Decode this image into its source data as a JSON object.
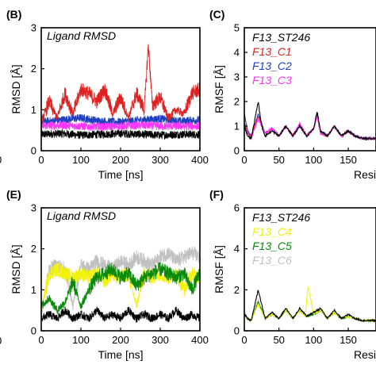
{
  "chart_data": [
    {
      "panel": "(B)",
      "type": "line",
      "title": "Ligand RMSD",
      "xlabel": "Time [ns]",
      "ylabel": "RMSD [Å]",
      "xlim": [
        0,
        400
      ],
      "ylim": [
        0,
        3
      ],
      "xticks": [
        "0",
        "100",
        "200",
        "300",
        "400"
      ],
      "yticks": [
        "0",
        "1",
        "2",
        "3"
      ],
      "series": [
        {
          "color": "#000000",
          "x": [
            0,
            50,
            100,
            150,
            200,
            250,
            300,
            350,
            400
          ],
          "y": [
            0.4,
            0.42,
            0.38,
            0.4,
            0.42,
            0.4,
            0.38,
            0.4,
            0.4
          ]
        },
        {
          "color": "#1f3fbf",
          "x": [
            0,
            50,
            100,
            150,
            200,
            250,
            300,
            350,
            400
          ],
          "y": [
            0.7,
            0.75,
            0.8,
            0.72,
            0.7,
            0.75,
            0.78,
            0.72,
            0.75
          ]
        },
        {
          "color": "#ff33ff",
          "x": [
            0,
            50,
            100,
            150,
            200,
            250,
            300,
            350,
            400
          ],
          "y": [
            0.6,
            0.62,
            0.6,
            0.58,
            0.6,
            0.62,
            0.6,
            0.6,
            0.6
          ]
        },
        {
          "color": "#dd2222",
          "x": [
            0,
            20,
            40,
            60,
            80,
            100,
            120,
            140,
            160,
            180,
            200,
            220,
            240,
            260,
            270,
            280,
            300,
            320,
            340,
            360,
            380,
            400
          ],
          "y": [
            0.7,
            1.2,
            0.8,
            1.4,
            0.9,
            1.5,
            1.4,
            1.2,
            1.5,
            0.9,
            1.3,
            0.8,
            1.4,
            1.0,
            2.6,
            1.1,
            1.3,
            0.8,
            1.0,
            0.9,
            1.4,
            1.5
          ]
        }
      ]
    },
    {
      "panel": "(C)",
      "type": "line",
      "ylabel": "RMSF [Å]",
      "xlabel_visible": "Resi",
      "ylim": [
        0,
        5
      ],
      "yticks": [
        "0",
        "1",
        "2",
        "3",
        "4",
        "5"
      ],
      "xticks": [
        "0",
        "50",
        "100",
        "150"
      ],
      "legend": [
        {
          "label": "F13_ST246",
          "color": "#000000"
        },
        {
          "label": "F13_C1",
          "color": "#dd2222"
        },
        {
          "label": "F13_C2",
          "color": "#1f3fbf"
        },
        {
          "label": "F13_C3",
          "color": "#ff33ff"
        }
      ],
      "series": [
        {
          "color": "#1f3fbf",
          "x": [
            0,
            5,
            10,
            20,
            30,
            40,
            50,
            60,
            70,
            80,
            90,
            100,
            105,
            110,
            120,
            130,
            140,
            150,
            160,
            170
          ],
          "y": [
            1.5,
            0.8,
            0.6,
            1.5,
            0.7,
            0.9,
            0.6,
            1.0,
            0.6,
            1.0,
            0.6,
            0.9,
            1.5,
            0.8,
            0.6,
            1.0,
            0.6,
            0.8,
            0.6,
            0.5
          ]
        },
        {
          "color": "#dd2222",
          "x": [
            0,
            5,
            10,
            20,
            30,
            40,
            50,
            60,
            70,
            80,
            90,
            100,
            105,
            110,
            120,
            130,
            140,
            150,
            160,
            170
          ],
          "y": [
            1.2,
            0.7,
            0.6,
            1.4,
            0.7,
            0.9,
            0.6,
            1.0,
            0.6,
            1.1,
            0.6,
            0.9,
            1.4,
            0.7,
            0.6,
            1.0,
            0.6,
            0.8,
            0.6,
            0.5
          ]
        },
        {
          "color": "#ff33ff",
          "x": [
            0,
            5,
            10,
            20,
            30,
            40,
            50,
            60,
            70,
            80,
            90,
            100,
            105,
            110,
            120,
            130,
            140,
            150,
            160,
            170
          ],
          "y": [
            1.0,
            0.7,
            0.5,
            1.3,
            0.7,
            0.9,
            0.6,
            1.0,
            0.6,
            1.1,
            0.6,
            0.9,
            1.4,
            0.7,
            0.6,
            1.0,
            0.6,
            0.8,
            0.6,
            0.5
          ]
        },
        {
          "color": "#000000",
          "x": [
            0,
            5,
            10,
            20,
            25,
            30,
            40,
            50,
            60,
            70,
            80,
            90,
            100,
            105,
            110,
            120,
            130,
            140,
            150,
            160,
            170
          ],
          "y": [
            1.0,
            0.6,
            0.5,
            2.0,
            1.0,
            0.6,
            0.8,
            0.6,
            1.0,
            0.6,
            1.0,
            0.6,
            0.9,
            1.6,
            0.8,
            0.6,
            1.0,
            0.6,
            0.8,
            0.6,
            0.5
          ]
        }
      ]
    },
    {
      "panel": "(E)",
      "type": "line",
      "title": "Ligand RMSD",
      "xlabel": "Time [ns]",
      "ylabel": "RMSD [Å]",
      "xlim": [
        0,
        400
      ],
      "ylim": [
        0,
        3
      ],
      "xticks": [
        "0",
        "100",
        "200",
        "300",
        "400"
      ],
      "yticks": [
        "0",
        "1",
        "2",
        "3"
      ],
      "series": [
        {
          "color": "#c0c0c0",
          "x": [
            0,
            20,
            40,
            60,
            80,
            100,
            120,
            140,
            160,
            180,
            200,
            220,
            240,
            260,
            280,
            300,
            320,
            340,
            360,
            380,
            400
          ],
          "y": [
            0.4,
            1.5,
            1.6,
            1.5,
            0.6,
            1.6,
            1.5,
            1.7,
            1.6,
            1.5,
            1.7,
            1.6,
            1.8,
            1.7,
            1.6,
            1.8,
            1.9,
            1.7,
            1.8,
            1.9,
            1.8
          ]
        },
        {
          "color": "#f2f20a",
          "x": [
            0,
            20,
            40,
            60,
            80,
            100,
            120,
            140,
            160,
            180,
            200,
            220,
            240,
            260,
            280,
            300,
            320,
            340,
            360,
            380,
            400
          ],
          "y": [
            0.5,
            1.4,
            1.5,
            1.4,
            1.3,
            1.4,
            1.3,
            1.4,
            1.2,
            1.4,
            1.3,
            1.4,
            0.6,
            1.4,
            1.3,
            1.4,
            1.3,
            1.4,
            1.0,
            1.4,
            1.3
          ]
        },
        {
          "color": "#0a8a0a",
          "x": [
            0,
            20,
            40,
            60,
            80,
            100,
            120,
            140,
            160,
            180,
            200,
            220,
            240,
            260,
            280,
            300,
            320,
            340,
            360,
            380,
            400
          ],
          "y": [
            0.6,
            0.8,
            0.5,
            0.7,
            1.2,
            0.6,
            1.0,
            1.3,
            1.4,
            1.5,
            1.3,
            1.4,
            1.1,
            1.3,
            1.4,
            1.5,
            1.4,
            1.3,
            1.4,
            1.0,
            1.4
          ]
        },
        {
          "color": "#000000",
          "x": [
            0,
            20,
            40,
            60,
            80,
            100,
            120,
            140,
            160,
            180,
            200,
            220,
            240,
            260,
            280,
            300,
            320,
            340,
            360,
            380,
            400
          ],
          "y": [
            0.3,
            0.4,
            0.3,
            0.5,
            0.3,
            0.4,
            0.3,
            0.5,
            0.3,
            0.4,
            0.3,
            0.5,
            0.3,
            0.4,
            0.3,
            0.4,
            0.3,
            0.5,
            0.3,
            0.4,
            0.3
          ]
        }
      ]
    },
    {
      "panel": "(F)",
      "type": "line",
      "ylabel": "RMSF [Å]",
      "xlabel_visible": "Resi",
      "ylim": [
        0,
        6
      ],
      "yticks": [
        "0",
        "2",
        "4",
        "6"
      ],
      "xticks": [
        "0",
        "50",
        "100",
        "150"
      ],
      "legend": [
        {
          "label": "F13_ST246",
          "color": "#000000"
        },
        {
          "label": "F13_C4",
          "color": "#f2f20a"
        },
        {
          "label": "F13_C5",
          "color": "#0a8a0a"
        },
        {
          "label": "F13_C6",
          "color": "#c0c0c0"
        }
      ],
      "series": [
        {
          "color": "#c0c0c0",
          "x": [
            0,
            5,
            10,
            20,
            30,
            40,
            50,
            60,
            70,
            80,
            90,
            100,
            110,
            120,
            130,
            140,
            150,
            160,
            170
          ],
          "y": [
            0.9,
            0.6,
            0.5,
            1.5,
            0.6,
            0.8,
            0.6,
            1.0,
            0.6,
            1.0,
            0.7,
            0.8,
            1.0,
            0.6,
            0.9,
            0.6,
            0.7,
            0.6,
            0.5
          ]
        },
        {
          "color": "#0a8a0a",
          "x": [
            0,
            5,
            10,
            20,
            30,
            40,
            50,
            60,
            70,
            80,
            90,
            100,
            110,
            120,
            130,
            140,
            150,
            160,
            170
          ],
          "y": [
            0.8,
            0.6,
            0.5,
            1.4,
            0.6,
            0.8,
            0.6,
            1.0,
            0.6,
            1.0,
            0.7,
            0.8,
            1.0,
            0.6,
            0.9,
            0.6,
            0.7,
            0.6,
            0.5
          ]
        },
        {
          "color": "#f2f20a",
          "x": [
            0,
            5,
            10,
            20,
            30,
            40,
            50,
            60,
            70,
            80,
            88,
            92,
            100,
            110,
            120,
            130,
            140,
            150,
            160,
            170
          ],
          "y": [
            0.8,
            0.6,
            0.5,
            1.3,
            0.6,
            0.8,
            0.6,
            1.0,
            0.6,
            1.0,
            0.7,
            2.2,
            0.8,
            1.0,
            0.6,
            0.9,
            0.6,
            0.7,
            0.6,
            0.5
          ]
        },
        {
          "color": "#000000",
          "x": [
            0,
            5,
            10,
            20,
            30,
            40,
            50,
            60,
            70,
            80,
            90,
            100,
            110,
            120,
            130,
            140,
            150,
            160,
            170
          ],
          "y": [
            0.8,
            0.6,
            0.5,
            2.0,
            0.6,
            0.9,
            0.6,
            1.1,
            0.6,
            1.1,
            0.7,
            0.9,
            1.1,
            0.6,
            1.0,
            0.6,
            0.8,
            0.6,
            0.5
          ]
        }
      ]
    }
  ],
  "left_cut_ticks": [
    "0",
    "0"
  ]
}
